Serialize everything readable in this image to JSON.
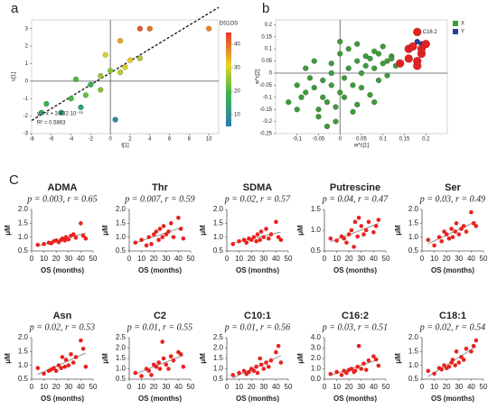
{
  "panel_labels": [
    "a",
    "b",
    "C"
  ],
  "chart_data": [
    {
      "type": "scatter",
      "x_label": "t[1]",
      "y_label": "u[1]",
      "xlim": [
        -8,
        11
      ],
      "ylim": [
        -3,
        3.5
      ],
      "xticks": [
        -8,
        -6,
        -4,
        -2,
        0,
        2,
        4,
        6,
        8,
        10
      ],
      "yticks": [
        -3,
        -2,
        -1,
        0,
        1,
        2,
        3
      ],
      "trendline": "dashed",
      "annotations": [
        "y = x + 3.432·10⁻¹⁶",
        "R² = 0.5863"
      ],
      "colorbar": {
        "label": "DS1OS",
        "lim": [
          5,
          45
        ],
        "ticks": [
          10,
          20,
          30,
          40
        ]
      },
      "series": [
        {
          "x": [
            -7,
            -6.5,
            -5,
            -4,
            -3,
            -2.5,
            -1,
            -1,
            0,
            1,
            1.5,
            2,
            3,
            -0.5,
            1,
            3,
            4,
            10,
            0.5,
            -3.5,
            -2
          ],
          "values": [
            -1.8,
            -1.3,
            -1.8,
            -1,
            -1.5,
            -0.8,
            -0.5,
            0.3,
            0.6,
            0.5,
            0.8,
            1.2,
            1.3,
            1.5,
            2.3,
            3,
            3,
            3,
            -2.2,
            0.1,
            -0.2
          ],
          "color_values": [
            15,
            18,
            12,
            20,
            14,
            22,
            24,
            26,
            25,
            28,
            30,
            32,
            27,
            30,
            35,
            42,
            40,
            38,
            8,
            20,
            18
          ]
        }
      ]
    },
    {
      "type": "scatter",
      "x_label": "w*c[1]",
      "y_label": "w*c[2]",
      "xlim": [
        -0.15,
        0.25
      ],
      "ylim": [
        -0.25,
        0.22
      ],
      "xticks": [
        -0.1,
        -0.05,
        0,
        0.05,
        0.1,
        0.15,
        0.2
      ],
      "yticks": [
        -0.25,
        -0.2,
        -0.15,
        -0.1,
        -0.05,
        0,
        0.05,
        0.1,
        0.15,
        0.2
      ],
      "legend": "top-right",
      "annotations": [
        "C16:2"
      ],
      "series": [
        {
          "name": "X",
          "color": "#3f9a3c",
          "x": [
            -0.12,
            -0.1,
            -0.09,
            -0.08,
            -0.07,
            -0.06,
            -0.05,
            -0.04,
            -0.03,
            -0.02,
            -0.01,
            0,
            0.01,
            0.02,
            0.03,
            0.04,
            0.05,
            0.06,
            0.07,
            0.08,
            0.09,
            0.1,
            0.11,
            0.12,
            0.13,
            -0.08,
            -0.06,
            -0.04,
            -0.02,
            0,
            0.02,
            0.04,
            0.06,
            0.08,
            0.1,
            0.12,
            -0.05,
            -0.03,
            -0.01,
            0.01,
            0.03,
            0.05,
            0.07,
            0.09,
            0.11,
            -0.1,
            0,
            0.04,
            0.08,
            -0.02
          ],
          "values": [
            -0.12,
            -0.05,
            -0.1,
            -0.08,
            -0.02,
            -0.06,
            -0.15,
            -0.1,
            -0.12,
            -0.05,
            -0.2,
            -0.08,
            -0.02,
            0.02,
            -0.05,
            0.05,
            0,
            0.03,
            0.06,
            0.02,
            0.08,
            0.04,
            0.05,
            0.07,
            0.03,
            0.02,
            0.05,
            -0.03,
            0.04,
            0.08,
            0.1,
            0.12,
            0.07,
            0.09,
            0.11,
            0.06,
            -0.18,
            -0.22,
            -0.14,
            -0.1,
            -0.16,
            -0.06,
            -0.09,
            -0.03,
            -0.01,
            -0.15,
            0.13,
            -0.13,
            -0.12,
            0
          ]
        },
        {
          "name": "Y",
          "color": "#2b3f98",
          "x": [
            0.18,
            0.19
          ],
          "values": [
            0.13,
            0.12
          ]
        }
      ],
      "highlight": {
        "color": "#e02424",
        "x": [
          0.18,
          0.16,
          0.17,
          0.18,
          0.19,
          0.2,
          0.16,
          0.18,
          0.14,
          0.19
        ],
        "values": [
          0.17,
          0.1,
          0.11,
          0.05,
          0.08,
          0.12,
          0.06,
          0.03,
          0.04,
          0.1
        ]
      }
    },
    {
      "type": "scatter",
      "title": "ADMA",
      "annotations": [
        "p = 0.003, r = 0.65"
      ],
      "x_label": "OS (months)",
      "y_label": "μM",
      "xlim": [
        0,
        50
      ],
      "xticks": [
        0,
        10,
        20,
        30,
        40,
        50
      ],
      "ylim": [
        0.5,
        2
      ],
      "yticks": [
        0.5,
        {
          "value": 1,
          "label": "1.0"
        },
        1.5,
        {
          "value": 2,
          "label": "2.0"
        }
      ],
      "trendline": "solid",
      "series": [
        {
          "color": "#e8231f",
          "x": [
            5,
            10,
            14,
            16,
            18,
            20,
            22,
            24,
            25,
            27,
            28,
            30,
            32,
            34,
            36,
            40,
            42,
            44
          ],
          "values": [
            0.72,
            0.75,
            0.8,
            0.78,
            0.85,
            0.88,
            0.82,
            0.9,
            0.95,
            0.88,
            1,
            0.92,
            1.05,
            1.1,
            0.98,
            1.5,
            1.05,
            0.95
          ]
        }
      ]
    },
    {
      "type": "scatter",
      "title": "Thr",
      "annotations": [
        "p = 0.007, r = 0.59"
      ],
      "x_label": "OS (months)",
      "y_label": "μM",
      "xlim": [
        0,
        50
      ],
      "xticks": [
        0,
        10,
        20,
        30,
        40,
        50
      ],
      "ylim": [
        0.5,
        2
      ],
      "yticks": [
        0.5,
        {
          "value": 1,
          "label": "1.0"
        },
        1.5,
        {
          "value": 2,
          "label": "2.0"
        }
      ],
      "trendline": "solid",
      "series": [
        {
          "color": "#e8231f",
          "x": [
            5,
            10,
            14,
            16,
            18,
            20,
            22,
            24,
            25,
            27,
            28,
            30,
            32,
            34,
            36,
            40,
            42,
            44
          ],
          "values": [
            0.8,
            0.9,
            0.7,
            1,
            0.75,
            1.1,
            1.2,
            0.9,
            1.3,
            1,
            1.4,
            1.1,
            1.2,
            1.5,
            1,
            1.7,
            1.3,
            0.95
          ]
        }
      ]
    },
    {
      "type": "scatter",
      "title": "SDMA",
      "annotations": [
        "p = 0.02, r = 0.57"
      ],
      "x_label": "OS (months)",
      "y_label": "μM",
      "xlim": [
        0,
        50
      ],
      "xticks": [
        0,
        10,
        20,
        30,
        40,
        50
      ],
      "ylim": [
        0.5,
        2
      ],
      "yticks": [
        0.5,
        {
          "value": 1,
          "label": "1.0"
        },
        1.5,
        {
          "value": 2,
          "label": "2.0"
        }
      ],
      "trendline": "solid",
      "series": [
        {
          "color": "#e8231f",
          "x": [
            5,
            10,
            14,
            16,
            18,
            20,
            22,
            24,
            25,
            27,
            28,
            30,
            32,
            34,
            36,
            40,
            42,
            44
          ],
          "values": [
            0.75,
            0.85,
            0.9,
            0.8,
            0.95,
            0.9,
            1,
            0.85,
            1.1,
            0.9,
            1.2,
            1,
            1.3,
            0.95,
            1.1,
            1.55,
            1,
            0.9
          ]
        }
      ]
    },
    {
      "type": "scatter",
      "title": "Putrescine",
      "annotations": [
        "p = 0.04, r = 0.47"
      ],
      "x_label": "OS (months)",
      "y_label": "μM",
      "xlim": [
        0,
        50
      ],
      "xticks": [
        0,
        10,
        20,
        30,
        40,
        50
      ],
      "ylim": [
        0.5,
        1.5
      ],
      "yticks": [
        0.5,
        {
          "value": 1,
          "label": "1.0"
        },
        1.5
      ],
      "trendline": "solid",
      "series": [
        {
          "color": "#e8231f",
          "x": [
            5,
            10,
            14,
            16,
            18,
            20,
            22,
            24,
            25,
            27,
            28,
            30,
            32,
            34,
            36,
            40,
            42,
            44
          ],
          "values": [
            0.8,
            0.75,
            0.85,
            0.8,
            0.7,
            0.9,
            1,
            0.6,
            1.2,
            0.85,
            1.3,
            1.1,
            0.9,
            1,
            1.2,
            0.95,
            1.1,
            1.25
          ]
        }
      ]
    },
    {
      "type": "scatter",
      "title": "Ser",
      "annotations": [
        "p = 0.03, r = 0.49"
      ],
      "x_label": "OS (months)",
      "y_label": "μM",
      "xlim": [
        0,
        50
      ],
      "xticks": [
        0,
        10,
        20,
        30,
        40,
        50
      ],
      "ylim": [
        0.5,
        2
      ],
      "yticks": [
        0.5,
        {
          "value": 1,
          "label": "1.0"
        },
        1.5,
        {
          "value": 2,
          "label": "2.0"
        }
      ],
      "trendline": "solid",
      "series": [
        {
          "color": "#e8231f",
          "x": [
            5,
            10,
            14,
            16,
            18,
            20,
            22,
            24,
            25,
            27,
            28,
            30,
            32,
            34,
            36,
            40,
            42,
            44
          ],
          "values": [
            0.9,
            0.7,
            1,
            0.85,
            1.2,
            1.1,
            0.95,
            1.3,
            1,
            1.2,
            1.5,
            1.1,
            1.3,
            1.4,
            1.2,
            1.9,
            1.5,
            1.4
          ]
        }
      ]
    },
    {
      "type": "scatter",
      "title": "Asn",
      "annotations": [
        "p = 0.02, r = 0.53"
      ],
      "x_label": "OS (months)",
      "y_label": "μM",
      "xlim": [
        0,
        50
      ],
      "xticks": [
        0,
        10,
        20,
        30,
        40,
        50
      ],
      "ylim": [
        0.5,
        2
      ],
      "yticks": [
        0.5,
        {
          "value": 1,
          "label": "1.0"
        },
        1.5,
        {
          "value": 2,
          "label": "2.0"
        }
      ],
      "trendline": "solid",
      "series": [
        {
          "color": "#e8231f",
          "x": [
            5,
            10,
            14,
            16,
            18,
            20,
            22,
            24,
            25,
            27,
            28,
            30,
            32,
            34,
            36,
            40,
            42,
            44
          ],
          "values": [
            0.9,
            0.7,
            0.8,
            0.85,
            0.9,
            0.8,
            1,
            0.9,
            1.3,
            0.95,
            1.2,
            1,
            1.4,
            1.1,
            1.3,
            1.9,
            1.6,
            0.95
          ]
        }
      ]
    },
    {
      "type": "scatter",
      "title": "C2",
      "annotations": [
        "p = 0.01, r = 0.55"
      ],
      "x_label": "OS (months)",
      "y_label": "μM",
      "xlim": [
        0,
        50
      ],
      "xticks": [
        0,
        10,
        20,
        30,
        40,
        50
      ],
      "ylim": [
        0.5,
        2.5
      ],
      "yticks": [
        0.5,
        {
          "value": 1,
          "label": "1.0"
        },
        1.5,
        {
          "value": 2,
          "label": "2.0"
        },
        2.5
      ],
      "trendline": "solid",
      "series": [
        {
          "color": "#e8231f",
          "x": [
            5,
            10,
            14,
            16,
            18,
            20,
            22,
            24,
            25,
            27,
            28,
            30,
            32,
            34,
            36,
            40,
            42,
            44
          ],
          "values": [
            0.8,
            0.65,
            1,
            0.9,
            0.7,
            1.2,
            1.1,
            1.3,
            1,
            2.3,
            1.5,
            1.2,
            1,
            1.6,
            1.4,
            1.8,
            1.7,
            1.1
          ]
        }
      ]
    },
    {
      "type": "scatter",
      "title": "C10:1",
      "annotations": [
        "p = 0.01, r = 0.56"
      ],
      "x_label": "OS (months)",
      "y_label": "μM",
      "xlim": [
        0,
        50
      ],
      "xticks": [
        0,
        10,
        20,
        30,
        40,
        50
      ],
      "ylim": [
        0.5,
        2.5
      ],
      "yticks": [
        0.5,
        {
          "value": 1,
          "label": "1.0"
        },
        1.5,
        {
          "value": 2,
          "label": "2.0"
        },
        2.5
      ],
      "trendline": "solid",
      "series": [
        {
          "color": "#e8231f",
          "x": [
            5,
            10,
            14,
            16,
            18,
            20,
            22,
            24,
            25,
            27,
            28,
            30,
            32,
            34,
            36,
            40,
            42,
            44
          ],
          "values": [
            0.7,
            0.8,
            0.9,
            0.75,
            0.85,
            1,
            0.9,
            1.1,
            0.8,
            1.5,
            1.2,
            1,
            1.3,
            1.1,
            1.4,
            1.8,
            2.1,
            1.3
          ]
        }
      ]
    },
    {
      "type": "scatter",
      "title": "C16:2",
      "annotations": [
        "p = 0.03, r = 0.51"
      ],
      "x_label": "OS (months)",
      "y_label": "μM",
      "xlim": [
        0,
        50
      ],
      "xticks": [
        0,
        10,
        20,
        30,
        40,
        50
      ],
      "ylim": [
        0,
        4
      ],
      "yticks": [
        {
          "value": 0,
          "label": "0.0"
        },
        {
          "value": 1,
          "label": "1.0"
        },
        {
          "value": 2,
          "label": "2.0"
        },
        {
          "value": 3,
          "label": "3.0"
        },
        {
          "value": 4,
          "label": "4.0"
        }
      ],
      "trendline": "solid",
      "series": [
        {
          "color": "#e8231f",
          "x": [
            5,
            10,
            14,
            16,
            18,
            20,
            22,
            24,
            25,
            27,
            28,
            30,
            32,
            34,
            36,
            40,
            42,
            44
          ],
          "values": [
            0.5,
            0.7,
            0.4,
            0.8,
            0.6,
            0.9,
            1,
            0.7,
            0.8,
            1.2,
            3.2,
            1,
            1.5,
            0.9,
            1.8,
            2.2,
            1.9,
            1.3
          ]
        }
      ]
    },
    {
      "type": "scatter",
      "title": "C18:1",
      "annotations": [
        "p = 0.02, r = 0.54"
      ],
      "x_label": "OS (months)",
      "y_label": "μM",
      "xlim": [
        0,
        50
      ],
      "xticks": [
        0,
        10,
        20,
        30,
        40,
        50
      ],
      "ylim": [
        0.5,
        2
      ],
      "yticks": [
        0.5,
        {
          "value": 1,
          "label": "1.0"
        },
        1.5,
        {
          "value": 2,
          "label": "2.0"
        }
      ],
      "trendline": "solid",
      "series": [
        {
          "color": "#e8231f",
          "x": [
            5,
            10,
            14,
            16,
            18,
            20,
            22,
            24,
            25,
            27,
            28,
            30,
            32,
            34,
            36,
            40,
            42,
            44
          ],
          "values": [
            0.8,
            0.7,
            0.9,
            0.85,
            1,
            0.9,
            0.95,
            1.1,
            1.2,
            1,
            1.5,
            1.1,
            1.3,
            1.2,
            1.6,
            1.5,
            1.7,
            1.9
          ]
        }
      ]
    }
  ]
}
